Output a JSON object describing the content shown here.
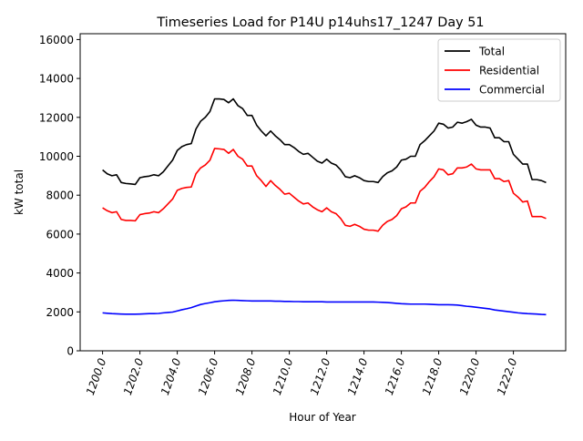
{
  "chart_data": {
    "type": "line",
    "title": "Timeseries Load for P14U p14uhs17_1247  Day 51",
    "xlabel": "Hour of Year",
    "ylabel": "kW total",
    "xlim": [
      1198.8,
      1224.8
    ],
    "ylim": [
      0,
      16300
    ],
    "x_start": 1200.0,
    "x_step": 0.25,
    "x_ticks": [
      1200,
      1202,
      1204,
      1206,
      1208,
      1210,
      1212,
      1214,
      1216,
      1218,
      1220,
      1222
    ],
    "x_tick_labels": [
      "1200.0",
      "1202.0",
      "1204.0",
      "1206.0",
      "1208.0",
      "1210.0",
      "1212.0",
      "1214.0",
      "1216.0",
      "1218.0",
      "1220.0",
      "1222.0"
    ],
    "y_ticks": [
      0,
      2000,
      4000,
      6000,
      8000,
      10000,
      12000,
      14000,
      16000
    ],
    "y_tick_labels": [
      "0",
      "2000",
      "4000",
      "6000",
      "8000",
      "10000",
      "12000",
      "14000",
      "16000"
    ],
    "legend_position": "top-right",
    "series": [
      {
        "name": "Total",
        "color": "#000000",
        "values": [
          9300,
          9100,
          9000,
          9050,
          8650,
          8600,
          8580,
          8550,
          8900,
          8950,
          8980,
          9050,
          9000,
          9200,
          9500,
          9800,
          10300,
          10500,
          10600,
          10650,
          11400,
          11800,
          12000,
          12300,
          12950,
          12950,
          12920,
          12750,
          12950,
          12600,
          12450,
          12100,
          12100,
          11600,
          11300,
          11050,
          11300,
          11050,
          10850,
          10600,
          10600,
          10450,
          10250,
          10100,
          10150,
          9950,
          9750,
          9650,
          9850,
          9650,
          9550,
          9300,
          8950,
          8900,
          9000,
          8900,
          8750,
          8700,
          8700,
          8650,
          8950,
          9150,
          9250,
          9450,
          9800,
          9850,
          10000,
          10000,
          10600,
          10800,
          11050,
          11300,
          11700,
          11650,
          11450,
          11500,
          11750,
          11700,
          11780,
          11900,
          11600,
          11500,
          11500,
          11450,
          10950,
          10950,
          10750,
          10750,
          10100,
          9850,
          9600,
          9600,
          8800,
          8800,
          8750,
          8650
        ]
      },
      {
        "name": "Residential",
        "color": "#ff0000",
        "values": [
          7350,
          7200,
          7100,
          7150,
          6750,
          6700,
          6700,
          6680,
          7000,
          7050,
          7080,
          7150,
          7100,
          7300,
          7550,
          7800,
          8250,
          8350,
          8400,
          8420,
          9100,
          9400,
          9550,
          9800,
          10400,
          10380,
          10350,
          10150,
          10350,
          10000,
          9850,
          9500,
          9500,
          9000,
          8750,
          8450,
          8750,
          8500,
          8300,
          8050,
          8100,
          7900,
          7700,
          7550,
          7600,
          7400,
          7250,
          7150,
          7350,
          7150,
          7050,
          6800,
          6450,
          6400,
          6500,
          6400,
          6250,
          6200,
          6200,
          6150,
          6450,
          6650,
          6750,
          6950,
          7300,
          7400,
          7600,
          7600,
          8200,
          8400,
          8700,
          8950,
          9350,
          9300,
          9050,
          9100,
          9400,
          9400,
          9450,
          9600,
          9350,
          9300,
          9300,
          9300,
          8850,
          8850,
          8700,
          8750,
          8100,
          7900,
          7650,
          7700,
          6900,
          6900,
          6900,
          6800
        ]
      },
      {
        "name": "Commercial",
        "color": "#0000ff",
        "values": [
          1950,
          1930,
          1910,
          1900,
          1890,
          1880,
          1880,
          1880,
          1890,
          1900,
          1910,
          1910,
          1920,
          1950,
          1970,
          1990,
          2050,
          2110,
          2160,
          2220,
          2300,
          2380,
          2430,
          2470,
          2520,
          2550,
          2570,
          2590,
          2600,
          2590,
          2580,
          2570,
          2560,
          2560,
          2560,
          2560,
          2560,
          2550,
          2550,
          2540,
          2540,
          2530,
          2530,
          2520,
          2520,
          2520,
          2520,
          2520,
          2510,
          2510,
          2510,
          2510,
          2510,
          2510,
          2510,
          2510,
          2510,
          2510,
          2510,
          2500,
          2490,
          2480,
          2460,
          2440,
          2420,
          2410,
          2400,
          2400,
          2400,
          2400,
          2390,
          2380,
          2370,
          2370,
          2370,
          2360,
          2350,
          2320,
          2290,
          2270,
          2240,
          2210,
          2180,
          2150,
          2100,
          2070,
          2040,
          2010,
          1980,
          1950,
          1930,
          1910,
          1900,
          1890,
          1870,
          1860
        ]
      }
    ]
  }
}
